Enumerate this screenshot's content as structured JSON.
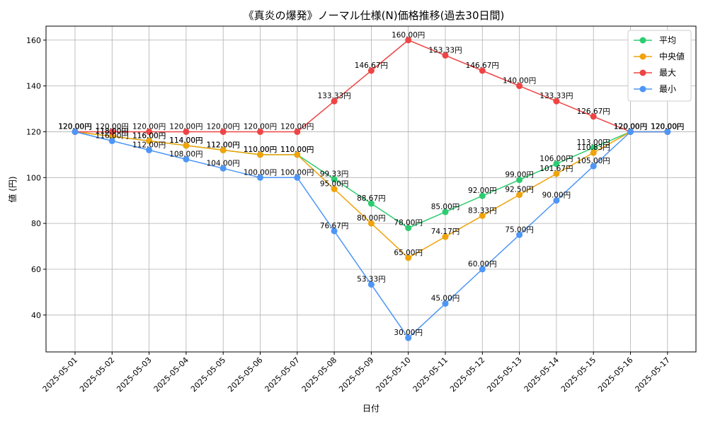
{
  "chart_data": {
    "type": "line",
    "title": "《真炎の爆発》ノーマル仕様(N)価格推移(過去30日間)",
    "xlabel": "日付",
    "ylabel": "値 (円)",
    "categories": [
      "2025-05-01",
      "2025-05-02",
      "2025-05-03",
      "2025-05-04",
      "2025-05-05",
      "2025-05-06",
      "2025-05-07",
      "2025-05-08",
      "2025-05-09",
      "2025-05-10",
      "2025-05-11",
      "2025-05-12",
      "2025-05-13",
      "2025-05-14",
      "2025-05-15",
      "2025-05-16",
      "2025-05-17"
    ],
    "ylim": [
      23.9,
      166.1
    ],
    "yticks": [
      40,
      60,
      80,
      100,
      120,
      140,
      160
    ],
    "grid": true,
    "legend_position": "top-right",
    "label_suffix": "円",
    "series": [
      {
        "name": "平均",
        "color": "#2ecc71",
        "values": [
          120,
          118,
          116,
          114,
          112,
          110,
          110,
          99.33,
          88.67,
          78,
          85,
          92,
          99,
          106,
          113,
          120,
          120
        ]
      },
      {
        "name": "中央値",
        "color": "#f0a30a",
        "values": [
          120,
          118,
          116,
          114,
          112,
          110,
          110,
          95,
          80,
          65,
          74.17,
          83.33,
          92.5,
          101.67,
          110.83,
          120,
          120
        ]
      },
      {
        "name": "最大",
        "color": "#ef4444",
        "values": [
          120,
          120,
          120,
          120,
          120,
          120,
          120,
          133.33,
          146.67,
          160,
          153.33,
          146.67,
          140,
          133.33,
          126.67,
          120,
          120
        ]
      },
      {
        "name": "最小",
        "color": "#4d96f7",
        "values": [
          120,
          116,
          112,
          108,
          104,
          100,
          100,
          76.67,
          53.33,
          30,
          45,
          60,
          75,
          90,
          105,
          120,
          120
        ]
      }
    ]
  }
}
